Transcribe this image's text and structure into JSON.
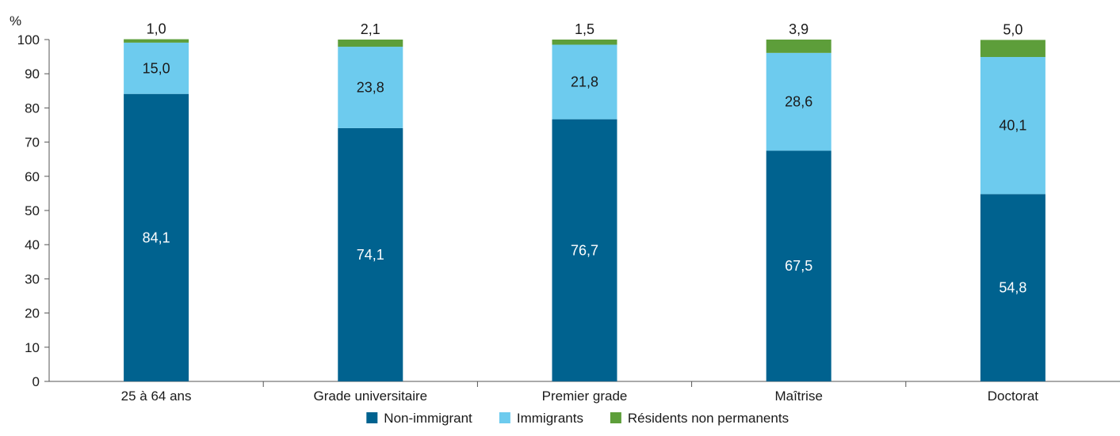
{
  "chart_data": {
    "type": "bar",
    "stacked": true,
    "y_unit_label": "%",
    "title": "",
    "xlabel": "",
    "ylabel": "",
    "ylim": [
      0,
      100
    ],
    "y_ticks": [
      0,
      10,
      20,
      30,
      40,
      50,
      60,
      70,
      80,
      90,
      100
    ],
    "grid": false,
    "legend_position": "bottom",
    "categories": [
      "25 à 64 ans",
      "Grade universitaire",
      "Premier grade",
      "Maîtrise",
      "Doctorat"
    ],
    "series": [
      {
        "name": "Non-immigrant",
        "color": "#00628f",
        "label_color": "#ffffff",
        "values": [
          84.1,
          74.1,
          76.7,
          67.5,
          54.8
        ],
        "labels": [
          "84,1",
          "74,1",
          "76,7",
          "67,5",
          "54,8"
        ]
      },
      {
        "name": "Immigrants",
        "color": "#6dcbee",
        "label_color": "#1a1a1a",
        "values": [
          15.0,
          23.8,
          21.8,
          28.6,
          40.1
        ],
        "labels": [
          "15,0",
          "23,8",
          "21,8",
          "28,6",
          "40,1"
        ]
      },
      {
        "name": "Résidents non permanents",
        "color": "#5d9e3a",
        "label_color": "#1a1a1a",
        "values": [
          1.0,
          2.1,
          1.5,
          3.9,
          5.0
        ],
        "labels": [
          "1,0",
          "2,1",
          "1,5",
          "3,9",
          "5,0"
        ]
      }
    ]
  }
}
